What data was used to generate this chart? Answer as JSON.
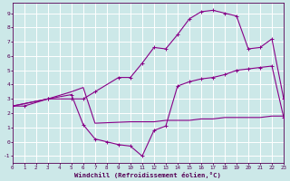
{
  "background_color": "#cce8e8",
  "grid_color": "#ffffff",
  "line_color": "#880088",
  "xlabel": "Windchill (Refroidissement éolien,°C)",
  "xlabel_color": "#550055",
  "tick_color": "#550055",
  "xlim": [
    0,
    23
  ],
  "ylim": [
    -1.5,
    9.7
  ],
  "xticks": [
    0,
    1,
    2,
    3,
    4,
    5,
    6,
    7,
    8,
    9,
    10,
    11,
    12,
    13,
    14,
    15,
    16,
    17,
    18,
    19,
    20,
    21,
    22,
    23
  ],
  "yticks": [
    -1,
    0,
    1,
    2,
    3,
    4,
    5,
    6,
    7,
    8,
    9
  ],
  "curve1_x": [
    0,
    1,
    3,
    5,
    6,
    7,
    9,
    10,
    11,
    12,
    13,
    14,
    15,
    16,
    17,
    18,
    19,
    20,
    21,
    22,
    23
  ],
  "curve1_y": [
    2.5,
    2.5,
    3.0,
    3.0,
    3.0,
    3.5,
    4.5,
    4.5,
    5.5,
    6.6,
    6.5,
    7.5,
    8.6,
    9.1,
    9.2,
    9.0,
    8.8,
    6.5,
    6.6,
    7.2,
    3.0
  ],
  "curve2_x": [
    0,
    3,
    5,
    6,
    7,
    8,
    9,
    10,
    11,
    12,
    13,
    14,
    15,
    16,
    17,
    18,
    19,
    20,
    21,
    22,
    23
  ],
  "curve2_y": [
    2.5,
    3.0,
    3.3,
    1.2,
    0.2,
    0.0,
    -0.2,
    -0.3,
    -1.0,
    0.8,
    1.1,
    3.9,
    4.2,
    4.4,
    4.5,
    4.7,
    5.0,
    5.1,
    5.2,
    5.3,
    1.7
  ],
  "curve3_x": [
    0,
    3,
    5,
    6,
    7,
    10,
    11,
    12,
    13,
    14,
    15,
    16,
    17,
    18,
    19,
    20,
    21,
    22,
    23
  ],
  "curve3_y": [
    2.5,
    3.0,
    3.5,
    3.8,
    1.3,
    1.4,
    1.4,
    1.4,
    1.5,
    1.5,
    1.5,
    1.6,
    1.6,
    1.7,
    1.7,
    1.7,
    1.7,
    1.8,
    1.8
  ]
}
